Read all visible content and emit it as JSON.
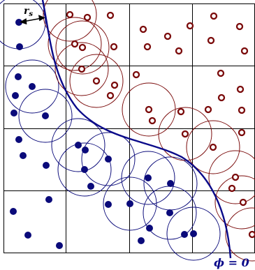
{
  "labels": {
    "radius": {
      "base": "r",
      "subscript": "s"
    },
    "interface": "ϕ = 0"
  },
  "colors": {
    "phase_a": "#0a0a7a",
    "phase_b": "#7a0a0a",
    "grid": "#000000",
    "interface_curve": "#0a0a8a"
  }
}
